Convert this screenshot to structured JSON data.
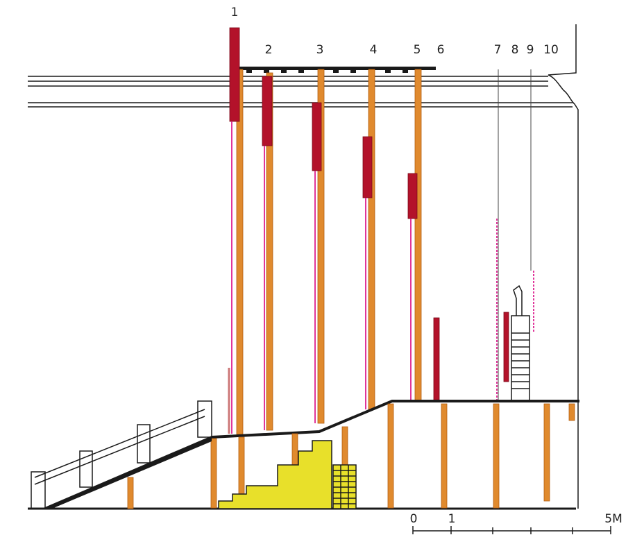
{
  "labels": [
    "1",
    "2",
    "3",
    "4",
    "5",
    "6",
    "7",
    "8",
    "9",
    "10"
  ],
  "scale": [
    "0",
    "1",
    "5M"
  ]
}
